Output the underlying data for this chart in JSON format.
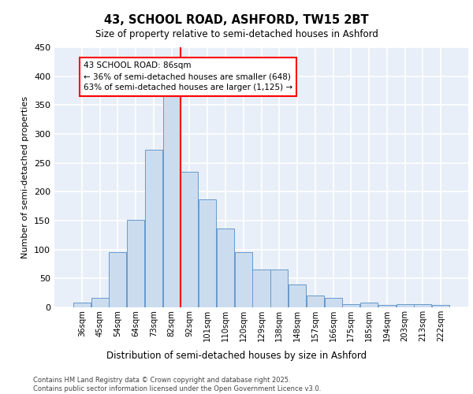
{
  "title_line1": "43, SCHOOL ROAD, ASHFORD, TW15 2BT",
  "title_line2": "Size of property relative to semi-detached houses in Ashford",
  "xlabel": "Distribution of semi-detached houses by size in Ashford",
  "ylabel": "Number of semi-detached properties",
  "footer_line1": "Contains HM Land Registry data © Crown copyright and database right 2025.",
  "footer_line2": "Contains public sector information licensed under the Open Government Licence v3.0.",
  "categories": [
    "36sqm",
    "45sqm",
    "54sqm",
    "64sqm",
    "73sqm",
    "82sqm",
    "92sqm",
    "101sqm",
    "110sqm",
    "120sqm",
    "129sqm",
    "138sqm",
    "148sqm",
    "157sqm",
    "166sqm",
    "175sqm",
    "185sqm",
    "194sqm",
    "203sqm",
    "213sqm",
    "222sqm"
  ],
  "values": [
    8,
    16,
    95,
    152,
    273,
    370,
    235,
    187,
    136,
    95,
    66,
    65,
    40,
    21,
    16,
    5,
    8,
    4,
    5,
    5,
    4
  ],
  "bar_color": "#ccdcef",
  "bar_edge_color": "#6699cc",
  "vline_color": "red",
  "vline_position": 5.5,
  "property_label": "43 SCHOOL ROAD: 86sqm",
  "pct_smaller": 36,
  "pct_smaller_count": 648,
  "pct_larger": 63,
  "pct_larger_count": 1125,
  "ylim": [
    0,
    450
  ],
  "yticks": [
    0,
    50,
    100,
    150,
    200,
    250,
    300,
    350,
    400,
    450
  ],
  "bg_color": "#e8eff8",
  "grid_color": "white"
}
